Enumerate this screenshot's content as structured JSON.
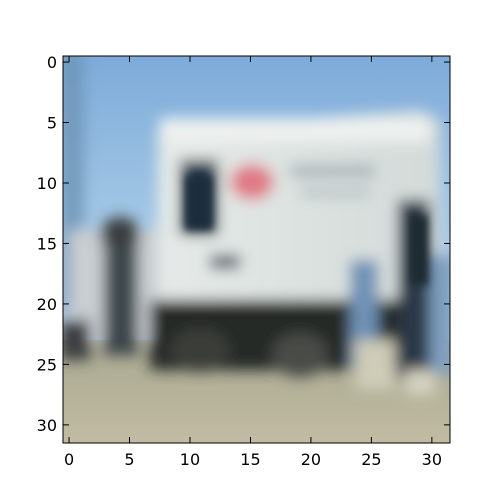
{
  "figure": {
    "x_ticks": [
      "0",
      "5",
      "10",
      "15",
      "20",
      "25",
      "30"
    ],
    "y_ticks": [
      "0",
      "5",
      "10",
      "15",
      "20",
      "25",
      "30"
    ],
    "image_shape": [
      32,
      32
    ],
    "image": {
      "subject": "blurry low-resolution photo of a white box truck on a street",
      "colors": {
        "sky": "#8fb9df",
        "sky_top": "#79a7d8",
        "truck_body": "#dfe4e2",
        "truck_shadow": "#2a2d2c",
        "ground": "#b8b5a0",
        "logo": "#e07a86",
        "person": "#283c4c"
      }
    }
  }
}
